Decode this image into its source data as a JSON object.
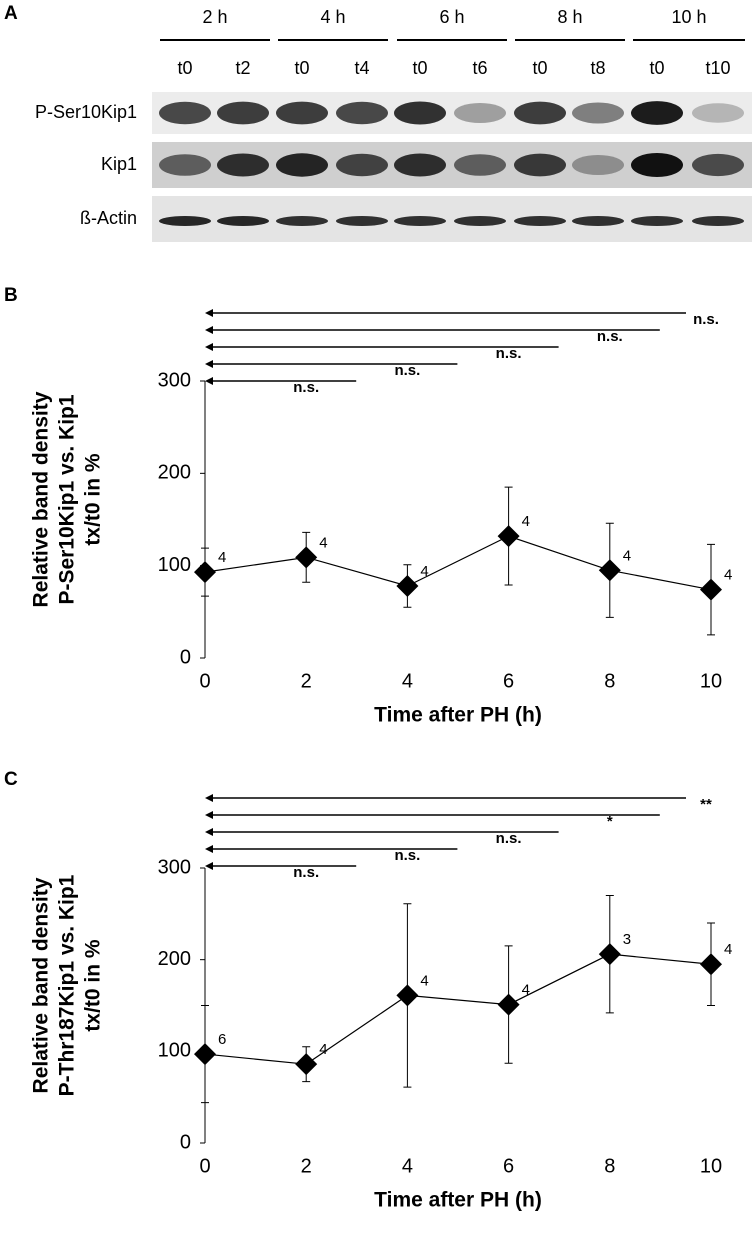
{
  "blot": {
    "panel": "A",
    "times": [
      "2 h",
      "4 h",
      "6 h",
      "8 h",
      "10 h"
    ],
    "lanes": [
      "t0",
      "t2",
      "t0",
      "t4",
      "t0",
      "t6",
      "t0",
      "t8",
      "t0",
      "t10"
    ],
    "rows": [
      "P-Ser10Kip1",
      "Kip1",
      "ß-Actin"
    ]
  },
  "chart_data": [
    {
      "type": "line",
      "panel": "B",
      "xlabel": "Time after PH (h)",
      "ylabel": [
        "Relative band density",
        "P-Ser10Kip1 vs. Kip1",
        "tx/t0 in %"
      ],
      "x": [
        0,
        2,
        4,
        6,
        8,
        10
      ],
      "values": [
        93,
        109,
        78,
        132,
        95,
        74
      ],
      "errors": [
        26,
        27,
        23,
        53,
        51,
        49
      ],
      "n": [
        4,
        4,
        4,
        4,
        4,
        4
      ],
      "color": "#000000",
      "xlim": [
        0,
        10
      ],
      "xticks": [
        0,
        2,
        4,
        6,
        8,
        10
      ],
      "ylim": [
        0,
        300
      ],
      "yticks": [
        0,
        100,
        200,
        300
      ],
      "comparisons": [
        {
          "to": 2,
          "label": "n.s."
        },
        {
          "to": 4,
          "label": "n.s."
        },
        {
          "to": 6,
          "label": "n.s."
        },
        {
          "to": 8,
          "label": "n.s."
        },
        {
          "to": 10,
          "label": "n.s."
        }
      ]
    },
    {
      "type": "line",
      "panel": "C",
      "xlabel": "Time after PH (h)",
      "ylabel": [
        "Relative band density",
        "P-Thr187Kip1 vs. Kip1",
        "tx/t0 in %"
      ],
      "x": [
        0,
        2,
        4,
        6,
        8,
        10
      ],
      "values": [
        97,
        86,
        161,
        151,
        206,
        195
      ],
      "errors": [
        53,
        19,
        100,
        64,
        64,
        45
      ],
      "n": [
        6,
        4,
        4,
        4,
        3,
        4
      ],
      "color": "#000000",
      "xlim": [
        0,
        10
      ],
      "xticks": [
        0,
        2,
        4,
        6,
        8,
        10
      ],
      "ylim": [
        0,
        300
      ],
      "yticks": [
        0,
        100,
        200,
        300
      ],
      "comparisons": [
        {
          "to": 2,
          "label": "n.s."
        },
        {
          "to": 4,
          "label": "n.s."
        },
        {
          "to": 6,
          "label": "n.s."
        },
        {
          "to": 8,
          "label": "*"
        },
        {
          "to": 10,
          "label": "**"
        }
      ]
    }
  ]
}
